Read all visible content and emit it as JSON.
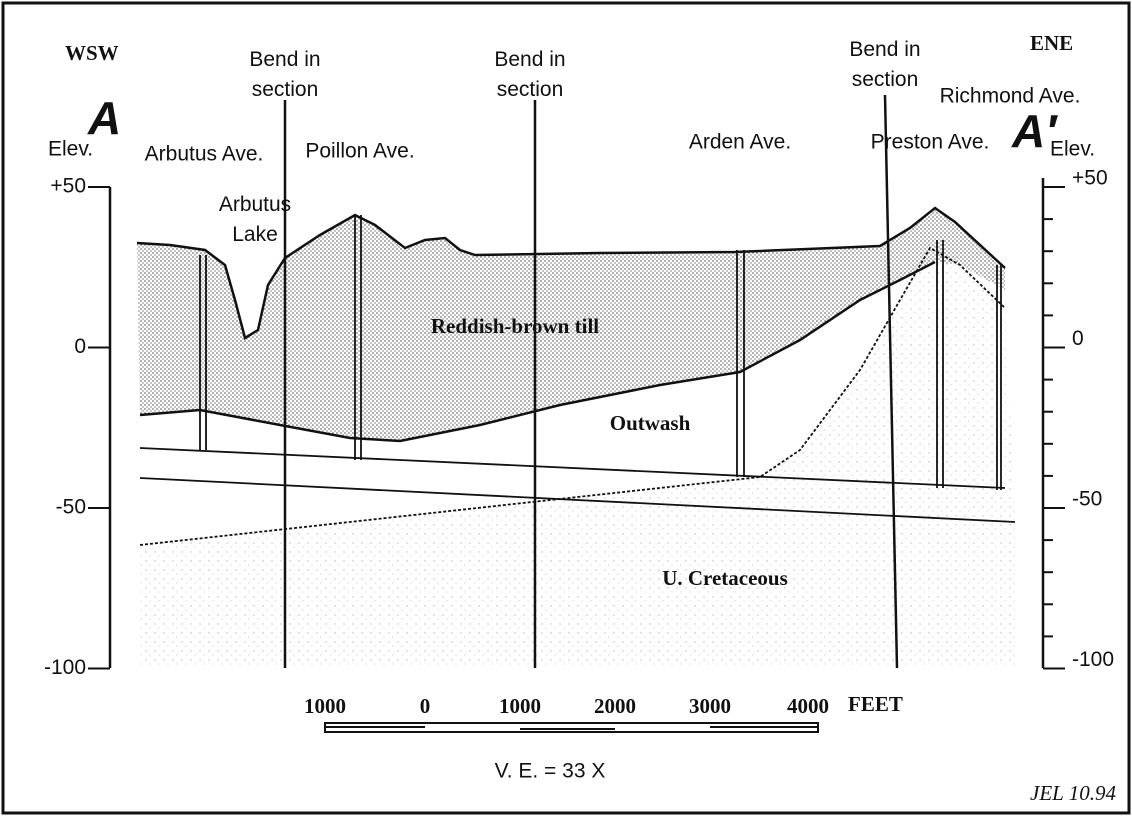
{
  "header": {
    "left_direction": "WSW",
    "right_direction": "ENE",
    "left_marker": "A",
    "right_marker": "A′"
  },
  "axes": {
    "left_label": "Elev.",
    "right_label": "Elev.",
    "left_ticks": [
      "+50",
      "0",
      "-50",
      "-100"
    ],
    "right_ticks": [
      "+50",
      "0",
      "-50",
      "-100"
    ]
  },
  "bends": [
    "Bend in section",
    "Bend in section",
    "Bend in section"
  ],
  "streets": [
    "Arbutus Ave.",
    "Poillon Ave.",
    "Arden Ave.",
    "Preston Ave.",
    "Richmond Ave."
  ],
  "features": {
    "lake": "Arbutus Lake"
  },
  "units": [
    "Reddish-brown till",
    "Outwash",
    "U. Cretaceous"
  ],
  "scale": {
    "labels": [
      "1000",
      "0",
      "1000",
      "2000",
      "3000",
      "4000"
    ],
    "unit": "FEET",
    "exaggeration": "V. E. = 33 X"
  },
  "signature": "JEL 10.94"
}
